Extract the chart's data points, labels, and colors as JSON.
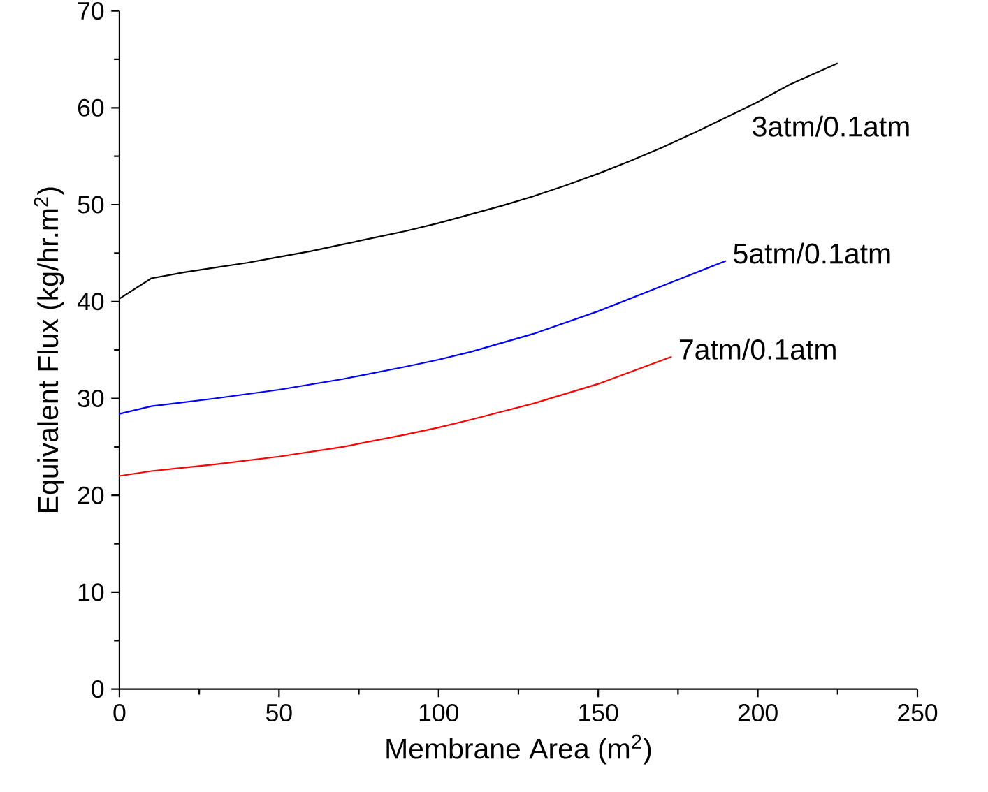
{
  "chart_data": {
    "type": "line",
    "xlabel": "Membrane Area (m$^{2}$)",
    "ylabel": "Equivalent Flux (kg/hr.m$^{2}$)",
    "xlim": [
      0,
      250
    ],
    "xticks": [
      0,
      50,
      100,
      150,
      200,
      250
    ],
    "ylim": [
      0,
      70
    ],
    "yticks": [
      0,
      10,
      20,
      30,
      40,
      50,
      60,
      70
    ],
    "legend": false,
    "grid": false,
    "marker": "none",
    "line_style": "solid",
    "series": [
      {
        "name": "3atm/0.1atm",
        "color": "#000000",
        "x": [
          0,
          10,
          20,
          30,
          40,
          50,
          60,
          70,
          80,
          90,
          100,
          110,
          120,
          130,
          140,
          150,
          160,
          170,
          180,
          190,
          200,
          210,
          225
        ],
        "values": [
          40.3,
          42.4,
          43.0,
          43.5,
          44.0,
          44.6,
          45.2,
          45.9,
          46.6,
          47.3,
          48.1,
          49.0,
          49.9,
          50.9,
          52.0,
          53.2,
          54.5,
          55.9,
          57.4,
          59.0,
          60.6,
          62.4,
          64.6
        ]
      },
      {
        "name": "5atm/0.1atm",
        "color": "#0000ff",
        "x": [
          0,
          10,
          30,
          50,
          70,
          90,
          100,
          110,
          130,
          150,
          170,
          190
        ],
        "values": [
          28.4,
          29.2,
          30.0,
          30.9,
          32.0,
          33.3,
          34.0,
          34.8,
          36.7,
          39.0,
          41.6,
          44.2
        ]
      },
      {
        "name": "7atm/0.1atm",
        "color": "#ff0000",
        "x": [
          0,
          10,
          30,
          50,
          70,
          90,
          100,
          110,
          130,
          150,
          173
        ],
        "values": [
          22.0,
          22.5,
          23.2,
          24.0,
          25.0,
          26.3,
          27.0,
          27.8,
          29.5,
          31.5,
          34.3
        ]
      }
    ]
  }
}
